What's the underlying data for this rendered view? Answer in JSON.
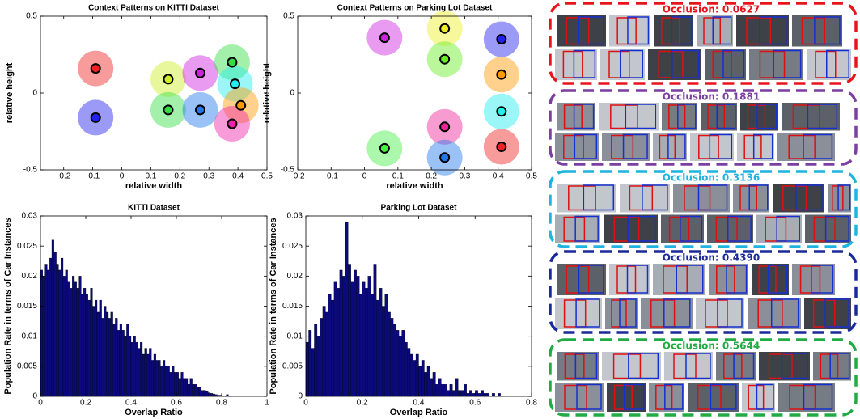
{
  "chart_data": [
    {
      "type": "scatter",
      "title": "Context Patterns on KITTI Dataset",
      "x_label": "relative width",
      "y_label": "relative height",
      "xlim": [
        -0.28,
        0.5
      ],
      "xticks": [
        -0.2,
        -0.1,
        0,
        0.1,
        0.2,
        0.3,
        0.4,
        0.5
      ],
      "ylim": [
        -0.5,
        0.5
      ],
      "yticks": [
        -0.5,
        0,
        0.5
      ],
      "series": [
        {
          "x": [
            -0.09,
            -0.09,
            0.16,
            0.16,
            0.27,
            0.27,
            0.38,
            0.39,
            0.41,
            0.38
          ],
          "values": [
            0.16,
            -0.16,
            0.09,
            -0.11,
            0.13,
            -0.11,
            0.2,
            0.06,
            -0.08,
            -0.2
          ],
          "colors": [
            "#ee2222",
            "#2222ee",
            "#ccee22",
            "#33dd44",
            "#cc22dd",
            "#2277ee",
            "#33dd44",
            "#22eeee",
            "#ff9900",
            "#ee22aa"
          ]
        }
      ]
    },
    {
      "type": "scatter",
      "title": "Context Patterns on Parking Lot Dataset",
      "x_label": "relative width",
      "y_label": "relative height",
      "xlim": [
        -0.2,
        0.5
      ],
      "xticks": [
        -0.2,
        -0.1,
        0,
        0.1,
        0.2,
        0.3,
        0.4,
        0.5
      ],
      "ylim": [
        -0.5,
        0.5
      ],
      "yticks": [
        -0.5,
        0,
        0.5
      ],
      "series": [
        {
          "x": [
            0.06,
            0.24,
            0.41,
            0.24,
            0.41,
            0.41,
            0.24,
            0.06,
            0.24,
            0.41
          ],
          "values": [
            0.36,
            0.42,
            0.35,
            0.22,
            0.12,
            -0.12,
            -0.22,
            -0.36,
            -0.42,
            -0.35
          ],
          "colors": [
            "#cc22dd",
            "#eeee22",
            "#2222ee",
            "#66ee22",
            "#ff9900",
            "#22eeee",
            "#ee2299",
            "#44ee44",
            "#2277ee",
            "#ee2222"
          ]
        }
      ]
    },
    {
      "type": "histogram",
      "title": "KITTI Dataset",
      "x_label": "Overlap Ratio",
      "y_label": "Population Rate in terms of Car Instances",
      "color": "#0a0a7a",
      "xlim": [
        0,
        1
      ],
      "xticks": [
        0,
        0.2,
        0.4,
        0.6,
        0.8,
        1
      ],
      "ylim": [
        0,
        0.03
      ],
      "yticks": [
        0,
        0.005,
        0.01,
        0.015,
        0.02,
        0.025,
        0.03
      ],
      "bins": [
        0,
        0.01,
        0.02,
        0.03,
        0.04,
        0.05,
        0.06,
        0.07,
        0.08,
        0.09,
        0.1,
        0.11,
        0.12,
        0.13,
        0.14,
        0.15,
        0.16,
        0.17,
        0.18,
        0.19,
        0.2,
        0.21,
        0.22,
        0.23,
        0.24,
        0.25,
        0.26,
        0.27,
        0.28,
        0.29,
        0.3,
        0.31,
        0.32,
        0.33,
        0.34,
        0.35,
        0.36,
        0.37,
        0.38,
        0.39,
        0.4,
        0.41,
        0.42,
        0.43,
        0.44,
        0.45,
        0.46,
        0.47,
        0.48,
        0.49,
        0.5,
        0.51,
        0.52,
        0.53,
        0.54,
        0.55,
        0.56,
        0.57,
        0.58,
        0.59,
        0.6,
        0.61,
        0.62,
        0.63,
        0.64,
        0.65,
        0.66,
        0.67,
        0.68,
        0.69,
        0.7,
        0.71,
        0.72,
        0.73,
        0.74,
        0.75,
        0.76,
        0.77,
        0.78,
        0.79,
        0.8,
        0.81,
        0.82,
        0.83,
        0.84,
        0.85
      ],
      "values": [
        0.021,
        0.02,
        0.022,
        0.021,
        0.023,
        0.026,
        0.024,
        0.022,
        0.021,
        0.023,
        0.02,
        0.021,
        0.019,
        0.018,
        0.02,
        0.019,
        0.018,
        0.02,
        0.017,
        0.018,
        0.017,
        0.016,
        0.018,
        0.015,
        0.016,
        0.014,
        0.016,
        0.013,
        0.015,
        0.014,
        0.013,
        0.014,
        0.012,
        0.013,
        0.011,
        0.012,
        0.011,
        0.01,
        0.012,
        0.01,
        0.009,
        0.01,
        0.009,
        0.008,
        0.009,
        0.007,
        0.008,
        0.007,
        0.008,
        0.006,
        0.007,
        0.006,
        0.006,
        0.005,
        0.006,
        0.005,
        0.005,
        0.004,
        0.005,
        0.004,
        0.004,
        0.003,
        0.004,
        0.003,
        0.003,
        0.002,
        0.003,
        0.002,
        0.002,
        0.0015,
        0.0015,
        0.001,
        0.001,
        0.0008,
        0.0006,
        0.0005,
        0.0004,
        0.0003,
        0.0002,
        0.0002,
        0.0001,
        0.0001,
        0.0003,
        0.0001,
        0.0001
      ]
    },
    {
      "type": "histogram",
      "title": "Parking Lot Dataset",
      "x_label": "Overlap Ratio",
      "y_label": "Population Rate in terms of Car Instances",
      "color": "#0a0a7a",
      "xlim": [
        0,
        0.8
      ],
      "xticks": [
        0,
        0.2,
        0.4,
        0.6,
        0.8
      ],
      "ylim": [
        0,
        0.03
      ],
      "yticks": [
        0,
        0.005,
        0.01,
        0.015,
        0.02,
        0.025,
        0.03
      ],
      "bins": [
        0,
        0.01,
        0.02,
        0.03,
        0.04,
        0.05,
        0.06,
        0.07,
        0.08,
        0.09,
        0.1,
        0.11,
        0.12,
        0.13,
        0.14,
        0.15,
        0.16,
        0.17,
        0.18,
        0.19,
        0.2,
        0.21,
        0.22,
        0.23,
        0.24,
        0.25,
        0.26,
        0.27,
        0.28,
        0.29,
        0.3,
        0.31,
        0.32,
        0.33,
        0.34,
        0.35,
        0.36,
        0.37,
        0.38,
        0.39,
        0.4,
        0.41,
        0.42,
        0.43,
        0.44,
        0.45,
        0.46,
        0.47,
        0.48,
        0.49,
        0.5,
        0.51,
        0.52,
        0.53,
        0.54,
        0.55,
        0.56,
        0.57,
        0.58,
        0.59,
        0.6,
        0.61,
        0.62,
        0.63,
        0.64,
        0.65,
        0.66,
        0.67,
        0.68,
        0.69,
        0.7
      ],
      "values": [
        0.009,
        0.011,
        0.008,
        0.012,
        0.01,
        0.013,
        0.015,
        0.014,
        0.017,
        0.016,
        0.019,
        0.018,
        0.021,
        0.02,
        0.029,
        0.022,
        0.019,
        0.021,
        0.02,
        0.017,
        0.019,
        0.018,
        0.02,
        0.017,
        0.022,
        0.016,
        0.018,
        0.015,
        0.017,
        0.014,
        0.013,
        0.012,
        0.011,
        0.01,
        0.011,
        0.009,
        0.008,
        0.007,
        0.006,
        0.007,
        0.005,
        0.006,
        0.004,
        0.005,
        0.003,
        0.004,
        0.002,
        0.003,
        0.002,
        0.002,
        0.001,
        0.002,
        0.001,
        0.003,
        0.001,
        0.001,
        0.002,
        0.0005,
        0.001,
        0.0005,
        0.001,
        0.0005,
        0.001,
        0.0005,
        0.0005,
        0,
        0.0005,
        0,
        0.0005,
        0
      ]
    }
  ],
  "occlusion_groups": [
    {
      "label": "Occlusion: 0.0627",
      "color": "#e8141c"
    },
    {
      "label": "Occlusion: 0.1881",
      "color": "#7b3fa0"
    },
    {
      "label": "Occlusion: 0.3136",
      "color": "#1fb3e0"
    },
    {
      "label": "Occlusion: 0.4390",
      "color": "#1a2a9a"
    },
    {
      "label": "Occlusion: 0.5644",
      "color": "#22aa44"
    }
  ]
}
